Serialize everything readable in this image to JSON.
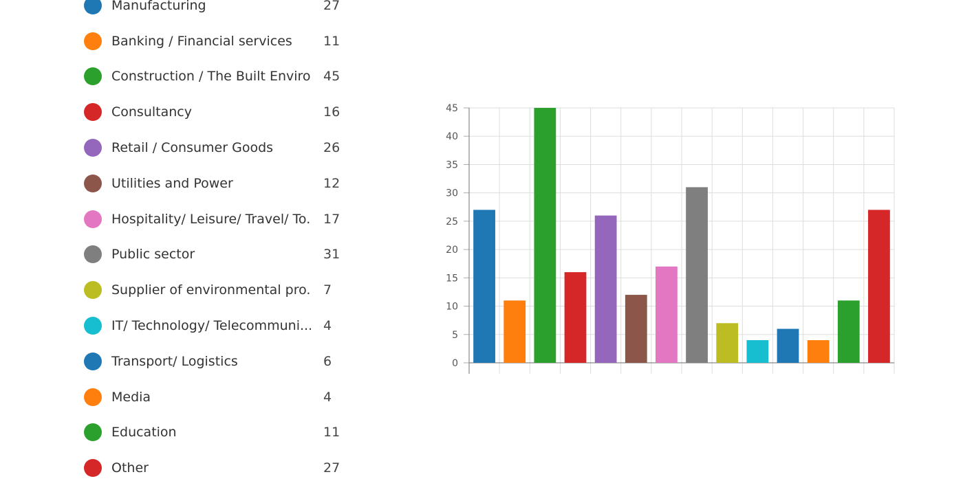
{
  "legend": {
    "items": [
      {
        "label": "Manufacturing",
        "count": "27",
        "color": "#1f77b4"
      },
      {
        "label": "Banking / Financial services",
        "count": "11",
        "color": "#ff7f0e"
      },
      {
        "label": "Construction / The Built Enviro...",
        "count": "45",
        "color": "#2ca02c"
      },
      {
        "label": "Consultancy",
        "count": "16",
        "color": "#d62728"
      },
      {
        "label": "Retail / Consumer Goods",
        "count": "26",
        "color": "#9467bd"
      },
      {
        "label": "Utilities and Power",
        "count": "12",
        "color": "#8c564b"
      },
      {
        "label": "Hospitality/ Leisure/ Travel/ To...",
        "count": "17",
        "color": "#e377c2"
      },
      {
        "label": "Public sector",
        "count": "31",
        "color": "#7f7f7f"
      },
      {
        "label": "Supplier of environmental pro...",
        "count": "7",
        "color": "#bcbd22"
      },
      {
        "label": "IT/ Technology/ Telecommuni...",
        "count": "4",
        "color": "#17becf"
      },
      {
        "label": "Transport/ Logistics",
        "count": "6",
        "color": "#1f77b4"
      },
      {
        "label": "Media",
        "count": "4",
        "color": "#ff7f0e"
      },
      {
        "label": "Education",
        "count": "11",
        "color": "#2ca02c"
      },
      {
        "label": "Other",
        "count": "27",
        "color": "#d62728"
      }
    ]
  },
  "chart_data": {
    "type": "bar",
    "categories": [
      "Manufacturing",
      "Banking / Financial services",
      "Construction / The Built Enviro...",
      "Consultancy",
      "Retail / Consumer Goods",
      "Utilities and Power",
      "Hospitality/ Leisure/ Travel/ To...",
      "Public sector",
      "Supplier of environmental pro...",
      "IT/ Technology/ Telecommuni...",
      "Transport/ Logistics",
      "Media",
      "Education",
      "Other"
    ],
    "values": [
      27,
      11,
      45,
      16,
      26,
      12,
      17,
      31,
      7,
      4,
      6,
      4,
      11,
      27
    ],
    "colors": [
      "#1f77b4",
      "#ff7f0e",
      "#2ca02c",
      "#d62728",
      "#9467bd",
      "#8c564b",
      "#e377c2",
      "#7f7f7f",
      "#bcbd22",
      "#17becf",
      "#1f77b4",
      "#ff7f0e",
      "#2ca02c",
      "#d62728"
    ],
    "y_ticks": [
      "0",
      "5",
      "10",
      "15",
      "20",
      "25",
      "30",
      "35",
      "40",
      "45"
    ],
    "ylim": [
      0,
      45
    ],
    "grid": true,
    "title": "",
    "xlabel": "",
    "ylabel": ""
  }
}
